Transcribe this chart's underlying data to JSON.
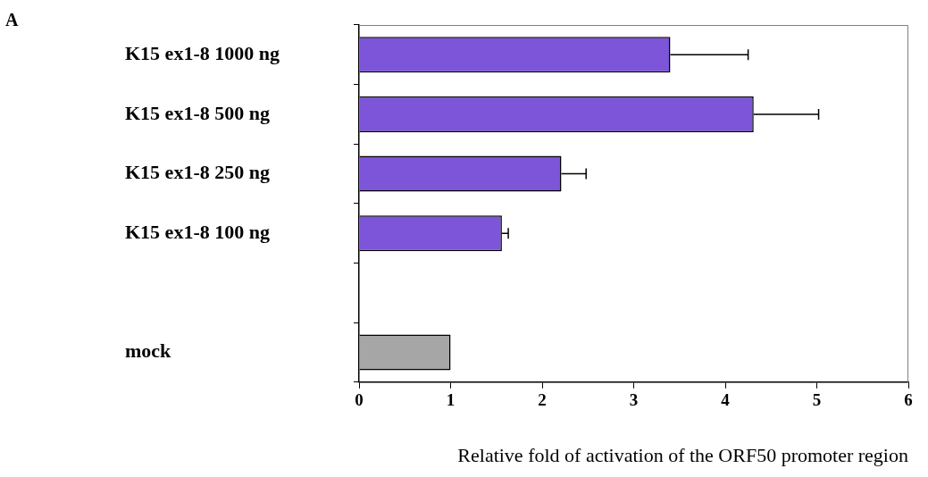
{
  "chart_data": {
    "type": "bar",
    "orientation": "horizontal",
    "categories": [
      "K15 ex1-8 1000 ng",
      "K15 ex1-8 500 ng",
      "K15 ex1-8 250 ng",
      "K15 ex1-8 100 ng",
      null,
      "mock"
    ],
    "values": [
      3.4,
      4.31,
      2.21,
      1.56,
      null,
      1.0
    ],
    "errors": [
      [
        3.4,
        4.25
      ],
      [
        4.31,
        5.02
      ],
      [
        2.21,
        2.48
      ],
      [
        1.56,
        1.63
      ],
      null,
      null
    ],
    "colors": [
      "#7d55d9",
      "#7d55d9",
      "#7d55d9",
      "#7d55d9",
      "#7d55d9",
      "#a6a6a6"
    ],
    "xlabel": "Relative fold of activation of the ORF50 promoter region",
    "xlim": [
      0,
      6
    ],
    "xticks": [
      0,
      1,
      2,
      3,
      4,
      5,
      6
    ],
    "annotations": [
      "A"
    ],
    "grid": false,
    "legend": false
  }
}
